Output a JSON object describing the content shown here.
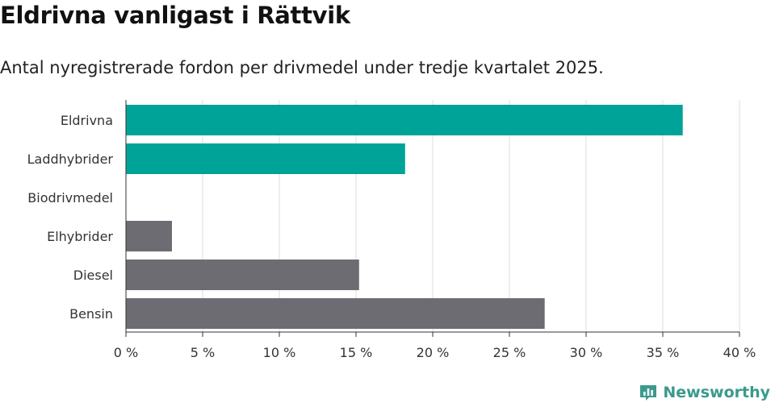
{
  "title": "Eldrivna vanligast i Rättvik",
  "subtitle": "Antal nyregistrerade fordon per drivmedel under tredje kvartalet 2025.",
  "brand": {
    "name": "Newsworthy",
    "icon": "bar-chart-logo-icon",
    "color": "#3a9a8c"
  },
  "colors": {
    "highlight": "#00a398",
    "default": "#6e6c73",
    "grid": "#dddddd",
    "axis": "#333333"
  },
  "chart_data": {
    "type": "bar",
    "orientation": "horizontal",
    "title": "Eldrivna vanligast i Rättvik",
    "subtitle": "Antal nyregistrerade fordon per drivmedel under tredje kvartalet 2025.",
    "categories": [
      "Eldrivna",
      "Laddhybrider",
      "Biodrivmedel",
      "Elhybrider",
      "Diesel",
      "Bensin"
    ],
    "values": [
      36.3,
      18.2,
      0,
      3.0,
      15.2,
      27.3
    ],
    "highlight": [
      true,
      true,
      true,
      false,
      false,
      false
    ],
    "xlim": [
      0,
      40
    ],
    "xticks": [
      0,
      5,
      10,
      15,
      20,
      25,
      30,
      35,
      40
    ],
    "tick_labels": [
      "0 %",
      "5 %",
      "10 %",
      "15 %",
      "20 %",
      "25 %",
      "30 %",
      "35 %",
      "40 %"
    ],
    "xlabel": "",
    "ylabel": "",
    "grid": true,
    "unit": "%"
  }
}
